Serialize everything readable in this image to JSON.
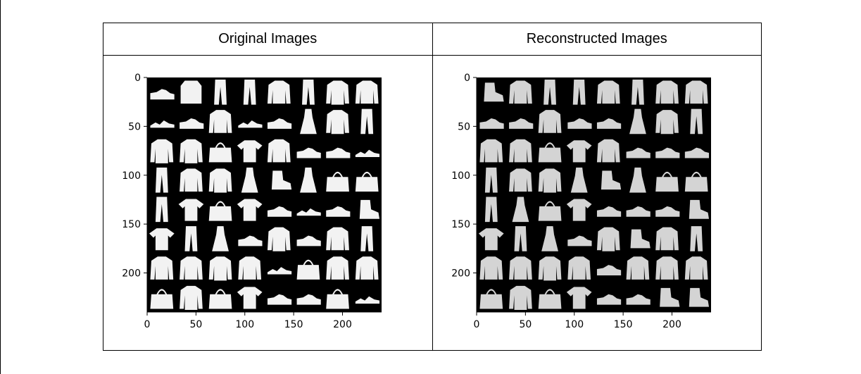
{
  "table": {
    "headers": [
      "Original Images",
      "Reconstructed Images"
    ]
  },
  "figures": [
    {
      "name": "original",
      "x_ticks": [
        "0",
        "50",
        "100",
        "150",
        "200"
      ],
      "y_ticks": [
        "0",
        "50",
        "100",
        "150",
        "200"
      ],
      "grid": {
        "rows": 8,
        "cols": 8,
        "items": [
          [
            "sneaker",
            "sweatshirt",
            "trouser",
            "trouser",
            "shirt",
            "trouser",
            "coat",
            "shirt"
          ],
          [
            "sandal",
            "sneaker",
            "pullover",
            "sandal",
            "sneaker",
            "dress",
            "coat",
            "trouser"
          ],
          [
            "coat",
            "coat",
            "bag",
            "tshirt",
            "pullover",
            "sneaker",
            "sneaker",
            "sandal"
          ],
          [
            "trouser",
            "pullover",
            "coat",
            "dress",
            "ankle-boot",
            "dress",
            "bag",
            "bag"
          ],
          [
            "trouser",
            "tshirt",
            "bag",
            "tshirt",
            "sneaker",
            "sandal",
            "sneaker",
            "ankle-boot"
          ],
          [
            "tshirt",
            "trouser",
            "dress",
            "sneaker",
            "coat",
            "sneaker",
            "pullover",
            "trouser"
          ],
          [
            "shirt",
            "pullover",
            "coat",
            "shirt",
            "sandal",
            "bag",
            "pullover",
            "pullover"
          ],
          [
            "bag",
            "coat",
            "bag",
            "tshirt",
            "sneaker",
            "sneaker",
            "bag",
            "sandal"
          ]
        ]
      }
    },
    {
      "name": "reconstructed",
      "x_ticks": [
        "0",
        "50",
        "100",
        "150",
        "200"
      ],
      "y_ticks": [
        "0",
        "50",
        "100",
        "150",
        "200"
      ],
      "grid": {
        "rows": 8,
        "cols": 8,
        "items": [
          [
            "ankle-boot",
            "pullover",
            "trouser",
            "trouser",
            "pullover",
            "trouser",
            "shirt",
            "shirt"
          ],
          [
            "sneaker",
            "sneaker",
            "pullover",
            "sneaker",
            "sneaker",
            "dress",
            "coat",
            "trouser"
          ],
          [
            "pullover",
            "pullover",
            "bag",
            "tshirt",
            "pullover",
            "sneaker",
            "sneaker",
            "sneaker"
          ],
          [
            "trouser",
            "pullover",
            "coat",
            "dress",
            "ankle-boot",
            "dress",
            "bag",
            "bag"
          ],
          [
            "trouser",
            "dress",
            "bag",
            "tshirt",
            "sneaker",
            "sneaker",
            "sneaker",
            "ankle-boot"
          ],
          [
            "tshirt",
            "trouser",
            "dress",
            "sneaker",
            "coat",
            "ankle-boot",
            "pullover",
            "trouser"
          ],
          [
            "pullover",
            "pullover",
            "coat",
            "shirt",
            "sneaker",
            "pullover",
            "pullover",
            "pullover"
          ],
          [
            "bag",
            "coat",
            "bag",
            "tshirt",
            "sneaker",
            "sneaker",
            "ankle-boot",
            "ankle-boot"
          ]
        ]
      }
    }
  ]
}
